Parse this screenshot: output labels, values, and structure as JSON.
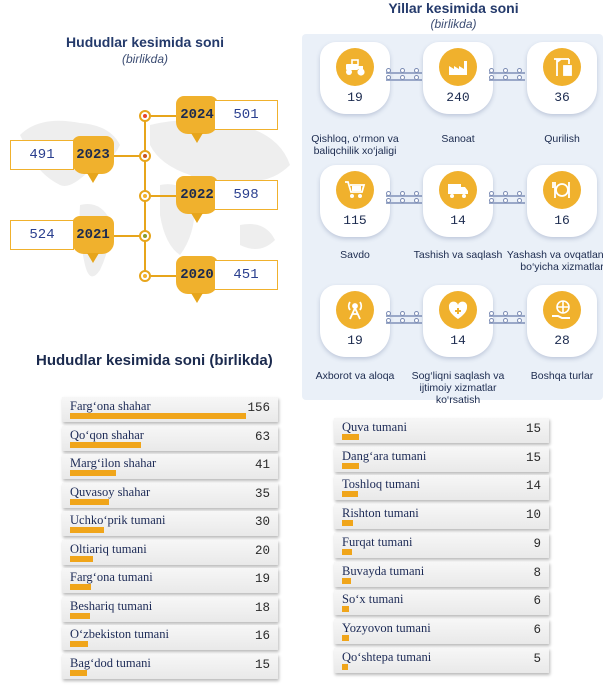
{
  "timeline": {
    "title": "Hududlar kesimida soni",
    "subtitle": "(birlikda)",
    "entries": [
      {
        "year": "2024",
        "value": "501"
      },
      {
        "year": "2023",
        "value": "491"
      },
      {
        "year": "2022",
        "value": "598"
      },
      {
        "year": "2021",
        "value": "524"
      },
      {
        "year": "2020",
        "value": "451"
      }
    ]
  },
  "sectors": {
    "title": "Yillar kesimida soni",
    "subtitle": "(birlikda)",
    "items": [
      {
        "value": "19",
        "label": "Qishloq, o‘rmon va baliqchilik xo‘jaligi",
        "icon": "tractor-icon"
      },
      {
        "value": "240",
        "label": "Sanoat",
        "icon": "factory-icon"
      },
      {
        "value": "36",
        "label": "Qurilish",
        "icon": "crane-icon"
      },
      {
        "value": "115",
        "label": "Savdo",
        "icon": "cart-icon"
      },
      {
        "value": "14",
        "label": "Tashish va saqlash",
        "icon": "truck-icon"
      },
      {
        "value": "16",
        "label": "Yashash va ovqatlanish bo‘yicha xizmatlar",
        "icon": "dish-icon"
      },
      {
        "value": "19",
        "label": "Axborot va aloqa",
        "icon": "antenna-icon"
      },
      {
        "value": "14",
        "label": "Sog‘liqni saqlash va ijtimoiy xizmatlar ko‘rsatish",
        "icon": "heart-cross-icon"
      },
      {
        "value": "28",
        "label": "Boshqa turlar",
        "icon": "globe-hand-icon"
      }
    ]
  },
  "regions": {
    "title": "Hududlar kesimida soni (birlikda)",
    "max": 156,
    "left": [
      {
        "name": "Farg‘ona shahar",
        "value": 156
      },
      {
        "name": "Qo‘qon shahar",
        "value": 63
      },
      {
        "name": "Marg‘ilon shahar",
        "value": 41
      },
      {
        "name": "Quvasoy shahar",
        "value": 35
      },
      {
        "name": "Uchko‘prik tumani",
        "value": 30
      },
      {
        "name": "Oltiariq tumani",
        "value": 20
      },
      {
        "name": "Farg‘ona tumani",
        "value": 19
      },
      {
        "name": "Beshariq tumani",
        "value": 18
      },
      {
        "name": "O‘zbekiston tumani",
        "value": 16
      },
      {
        "name": "Bag‘dod tumani",
        "value": 15
      }
    ],
    "right": [
      {
        "name": "Quva tumani",
        "value": 15
      },
      {
        "name": "Dang‘ara tumani",
        "value": 15
      },
      {
        "name": "Toshloq tumani",
        "value": 14
      },
      {
        "name": "Rishton tumani",
        "value": 10
      },
      {
        "name": "Furqat tumani",
        "value": 9
      },
      {
        "name": "Buvayda tumani",
        "value": 8
      },
      {
        "name": "So‘x tumani",
        "value": 6
      },
      {
        "name": "Yozyovon tumani",
        "value": 6
      },
      {
        "name": "Qo‘shtepa tumani",
        "value": 5
      }
    ]
  },
  "chart_data": [
    {
      "type": "line",
      "title": "Hududlar kesimida soni",
      "subtitle": "(birlikda)",
      "x": [
        "2020",
        "2021",
        "2022",
        "2023",
        "2024"
      ],
      "values": [
        451,
        524,
        598,
        491,
        501
      ]
    },
    {
      "type": "table",
      "title": "Yillar kesimida soni",
      "subtitle": "(birlikda)",
      "categories": [
        "Qishloq, o‘rmon va baliqchilik xo‘jaligi",
        "Sanoat",
        "Qurilish",
        "Savdo",
        "Tashish va saqlash",
        "Yashash va ovqatlanish bo‘yicha xizmatlar",
        "Axborot va aloqa",
        "Sog‘liqni saqlash va ijtimoiy xizmatlar ko‘rsatish",
        "Boshqa turlar"
      ],
      "values": [
        19,
        240,
        36,
        115,
        14,
        16,
        19,
        14,
        28
      ]
    },
    {
      "type": "bar",
      "title": "Hududlar kesimida soni (birlikda)",
      "categories": [
        "Farg‘ona shahar",
        "Qo‘qon shahar",
        "Marg‘ilon shahar",
        "Quvasoy shahar",
        "Uchko‘prik tumani",
        "Oltiariq tumani",
        "Farg‘ona tumani",
        "Beshariq tumani",
        "O‘zbekiston tumani",
        "Bag‘dod tumani",
        "Quva tumani",
        "Dang‘ara tumani",
        "Toshloq tumani",
        "Rishton tumani",
        "Furqat tumani",
        "Buvayda tumani",
        "So‘x tumani",
        "Yozyovon tumani",
        "Qo‘shtepa tumani"
      ],
      "values": [
        156,
        63,
        41,
        35,
        30,
        20,
        19,
        18,
        16,
        15,
        15,
        15,
        14,
        10,
        9,
        8,
        6,
        6,
        5
      ],
      "xlim": [
        0,
        156
      ]
    }
  ]
}
